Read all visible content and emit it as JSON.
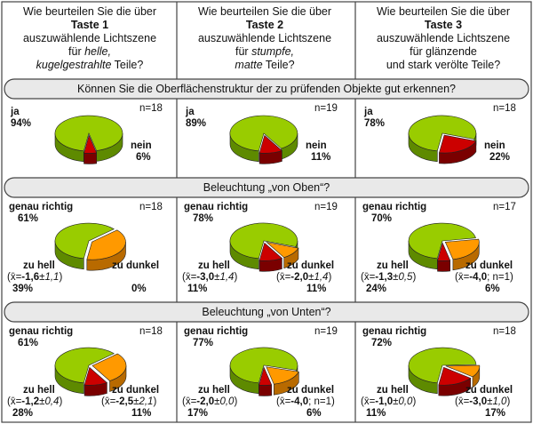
{
  "headers": [
    {
      "pre": "Wie beurteilen Sie die über",
      "title": "Taste 1",
      "line3": "auszuwählende Lichtszene",
      "line4a": "für ",
      "line4i": "helle,",
      "line5i": "kugelgestrahlte",
      "line5b": " Teile?"
    },
    {
      "pre": "Wie beurteilen Sie die über",
      "title": "Taste 2",
      "line3": "auszuwählende Lichtszene",
      "line4a": "für ",
      "line4i": "stumpfe,",
      "line5i": "matte",
      "line5b": " Teile?"
    },
    {
      "pre": "Wie beurteilen Sie die über",
      "title": "Taste 3",
      "line3": "auszuwählende Lichtszene",
      "line4a": "für glänzende",
      "line4i": "",
      "line5i": "",
      "line5b": "und stark verölte Teile?"
    }
  ],
  "questions": [
    "Können Sie die Oberflächenstruktur der zu prüfenden Objekte gut erkennen?",
    "Beleuchtung „von Oben“?",
    "Beleuchtung „von Unten“?"
  ],
  "colors": {
    "green": "#99cc00",
    "green_dark": "#5e8a00",
    "orange": "#ff9900",
    "orange_dark": "#b86a00",
    "red": "#cc0000",
    "red_dark": "#7a0000",
    "frame": "#444444",
    "band": "#e9e9e9"
  },
  "chart_data": [
    {
      "type": "pie",
      "row": 0,
      "col": 0,
      "n": "n=18",
      "slices": [
        {
          "name": "ja",
          "pct": 94,
          "label": "94%"
        },
        {
          "name": "nein",
          "pct": 6,
          "label": "6%"
        }
      ]
    },
    {
      "type": "pie",
      "row": 0,
      "col": 1,
      "n": "n=19",
      "slices": [
        {
          "name": "ja",
          "pct": 89,
          "label": "89%"
        },
        {
          "name": "nein",
          "pct": 11,
          "label": "11%"
        }
      ]
    },
    {
      "type": "pie",
      "row": 0,
      "col": 2,
      "n": "n=18",
      "slices": [
        {
          "name": "ja",
          "pct": 78,
          "label": "78%"
        },
        {
          "name": "nein",
          "pct": 22,
          "label": "22%"
        }
      ]
    },
    {
      "type": "pie",
      "row": 1,
      "col": 0,
      "n": "n=18",
      "slices": [
        {
          "name": "genau richtig",
          "pct": 61,
          "label": "61%"
        },
        {
          "name": "zu hell",
          "pct": 39,
          "label": "39%",
          "mean": "-1,6",
          "sd": "1,1"
        },
        {
          "name": "zu dunkel",
          "pct": 0,
          "label": "0%"
        }
      ]
    },
    {
      "type": "pie",
      "row": 1,
      "col": 1,
      "n": "n=19",
      "slices": [
        {
          "name": "genau richtig",
          "pct": 78,
          "label": "78%"
        },
        {
          "name": "zu hell",
          "pct": 11,
          "label": "11%",
          "mean": "-3,0",
          "sd": "1,4"
        },
        {
          "name": "zu dunkel",
          "pct": 11,
          "label": "11%",
          "mean": "-2,0",
          "sd": "1,4"
        }
      ]
    },
    {
      "type": "pie",
      "row": 1,
      "col": 2,
      "n": "n=17",
      "slices": [
        {
          "name": "genau richtig",
          "pct": 70,
          "label": "70%"
        },
        {
          "name": "zu hell",
          "pct": 24,
          "label": "24%",
          "mean": "-1,3",
          "sd": "0,5"
        },
        {
          "name": "zu dunkel",
          "pct": 6,
          "label": "6%",
          "mean": "-4,0",
          "extra": "n=1"
        }
      ]
    },
    {
      "type": "pie",
      "row": 2,
      "col": 0,
      "n": "n=18",
      "slices": [
        {
          "name": "genau richtig",
          "pct": 61,
          "label": "61%"
        },
        {
          "name": "zu hell",
          "pct": 28,
          "label": "28%",
          "mean": "-1,2",
          "sd": "0,4"
        },
        {
          "name": "zu dunkel",
          "pct": 11,
          "label": "11%",
          "mean": "-2,5",
          "sd": "2,1"
        }
      ]
    },
    {
      "type": "pie",
      "row": 2,
      "col": 1,
      "n": "n=19",
      "slices": [
        {
          "name": "genau richtig",
          "pct": 77,
          "label": "77%"
        },
        {
          "name": "zu hell",
          "pct": 17,
          "label": "17%",
          "mean": "-2,0",
          "sd": "0,0"
        },
        {
          "name": "zu dunkel",
          "pct": 6,
          "label": "6%",
          "mean": "-4,0",
          "extra": "n=1"
        }
      ]
    },
    {
      "type": "pie",
      "row": 2,
      "col": 2,
      "n": "n=18",
      "slices": [
        {
          "name": "genau richtig",
          "pct": 72,
          "label": "72%"
        },
        {
          "name": "zu hell",
          "pct": 11,
          "label": "11%",
          "mean": "-1,0",
          "sd": "0,0"
        },
        {
          "name": "zu dunkel",
          "pct": 17,
          "label": "17%",
          "mean": "-3,0",
          "sd": "1,0"
        }
      ]
    }
  ]
}
